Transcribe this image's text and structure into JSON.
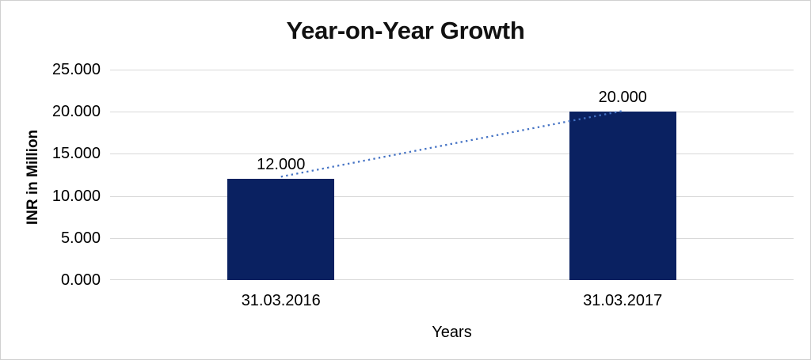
{
  "window": {
    "background": "#ffffff",
    "frame_border_color": "#d0d0d0"
  },
  "chart_data": {
    "type": "bar",
    "title": "Year-on-Year Growth",
    "categories": [
      "31.03.2016",
      "31.03.2017"
    ],
    "values": [
      12,
      20
    ],
    "data_labels": [
      "12.000",
      "20.000"
    ],
    "xlabel": "Years",
    "ylabel": "INR in Million",
    "ylim": [
      0,
      25
    ],
    "yticks": [
      0,
      5,
      10,
      15,
      20,
      25
    ],
    "ytick_labels": [
      "0.000",
      "5.000",
      "10.000",
      "15.000",
      "20.000",
      "25.000"
    ],
    "bar_color": "#0A2161",
    "gridline_color": "#D9D9D9",
    "grid": true,
    "legend_position": "none",
    "trendline": {
      "style": "dotted",
      "color": "#4472C4",
      "from_label": "12.000",
      "to_label": "20.000"
    }
  }
}
